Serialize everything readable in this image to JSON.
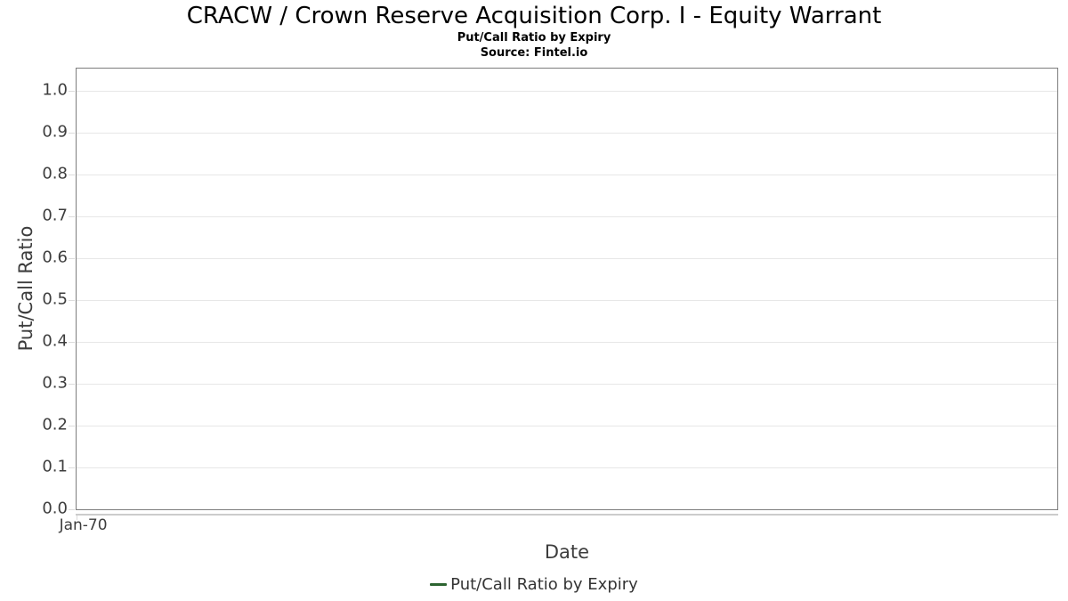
{
  "title": "CRACW / Crown Reserve Acquisition Corp. I - Equity Warrant",
  "subtitle": "Put/Call Ratio by Expiry",
  "source": "Source: Fintel.io",
  "chart_data": {
    "type": "line",
    "title": "CRACW / Crown Reserve Acquisition Corp. I - Equity Warrant",
    "subtitle": "Put/Call Ratio by Expiry",
    "source": "Source: Fintel.io",
    "xlabel": "Date",
    "ylabel": "Put/Call Ratio",
    "x_tick_labels": [
      "Jan-70"
    ],
    "x_tick_pos": [
      0
    ],
    "y_tick_labels": [
      "0.0",
      "0.1",
      "0.2",
      "0.3",
      "0.4",
      "0.5",
      "0.6",
      "0.7",
      "0.8",
      "0.9",
      "1.0"
    ],
    "ylim": [
      0,
      1.053
    ],
    "grid": true,
    "legend_position": "bottom",
    "series": [
      {
        "name": "Put/Call Ratio by Expiry",
        "color": "#2c6430",
        "x": [],
        "values": []
      }
    ]
  },
  "legend": {
    "items": [
      {
        "label": "Put/Call Ratio by Expiry",
        "color": "#2c6430"
      }
    ]
  },
  "colors": {
    "text_primary": "#000000",
    "text_axis": "#3d3d3d",
    "grid": "#e7e7e7",
    "plot_border": "#7d7d7d",
    "axis_line": "#cccccc",
    "tick": "#dcdcdc",
    "series_green": "#2c6430"
  }
}
